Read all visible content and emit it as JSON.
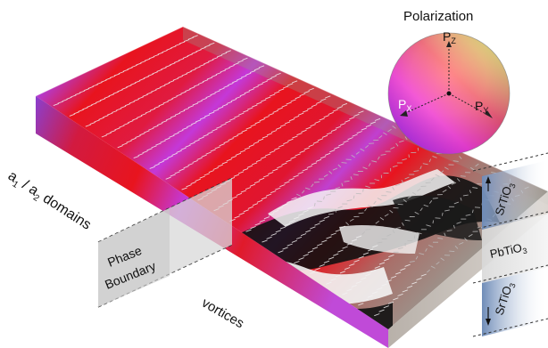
{
  "legend": {
    "title": "Polarization",
    "axis_z": "P",
    "axis_z_sub": "Z",
    "axis_x": "P",
    "axis_x_sub": "X",
    "axis_y": "P",
    "axis_y_sub": "Y"
  },
  "labels": {
    "domains": "a",
    "domains_sub1": "1",
    "domains_mid": " / a",
    "domains_sub2": "2",
    "domains_tail": " domains",
    "phase_boundary_line1": "Phase",
    "phase_boundary_line2": "Boundary",
    "vortices": "vortices"
  },
  "layers": {
    "top": "SrTiO",
    "top_sub": "3",
    "middle": "PbTiO",
    "middle_sub": "3",
    "bottom": "SrTiO",
    "bottom_sub": "3"
  },
  "colors": {
    "domain_red": "#e8141e",
    "domain_magenta": "#c438d8",
    "domain_purple": "#8a3fd0",
    "vortex_black": "#111111",
    "vortex_white": "#f4f4f4",
    "layer_blue": "#8aa4c8",
    "slab_gray": "#9a8f88"
  },
  "icons": {
    "arrow_field": "polarization-arrow-icon",
    "color_wheel": "polarization-sphere-icon"
  }
}
